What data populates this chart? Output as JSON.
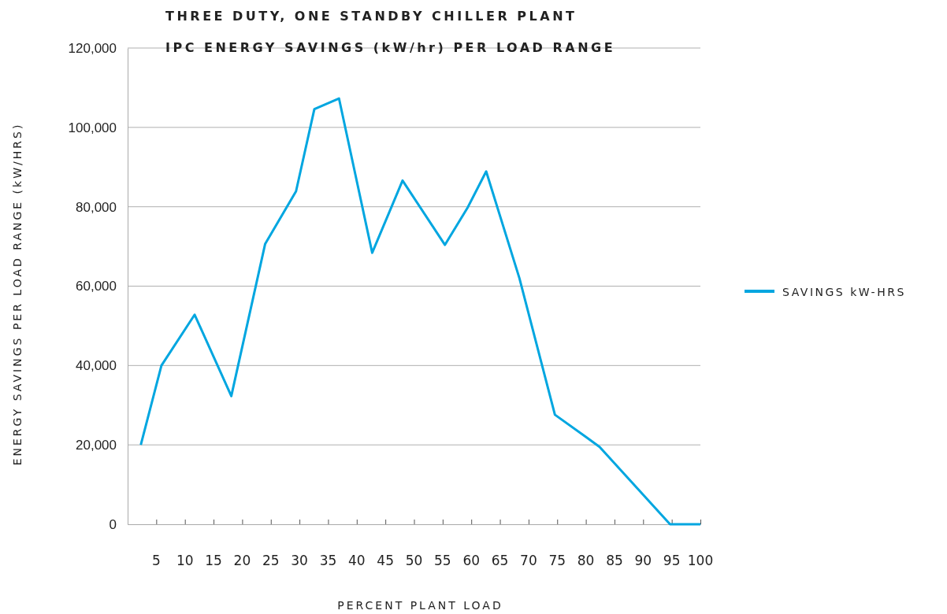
{
  "chart_data": {
    "type": "line",
    "title": "THREE DUTY, ONE STANDBY CHILLER PLANT",
    "subtitle": "IPC ENERGY SAVINGS (kW/hr) PER LOAD RANGE",
    "xlabel": "PERCENT PLANT LOAD",
    "ylabel": "ENERGY SAVINGS PER LOAD RANGE (kW/HRS)",
    "x": [
      2.3,
      5.9,
      11.7,
      18.1,
      24,
      29.4,
      32.6,
      36.9,
      42.7,
      48,
      55.4,
      59.4,
      62.6,
      68.4,
      74.6,
      80,
      82.4,
      94.7,
      100
    ],
    "series": [
      {
        "name": "SAVINGS kW-HRS",
        "color": "#00a6e0",
        "values": [
          20000,
          40000,
          52800,
          32300,
          70600,
          83900,
          104600,
          107300,
          68400,
          86600,
          70400,
          79900,
          88900,
          62000,
          27600,
          22000,
          19500,
          0,
          0
        ]
      }
    ],
    "xlim": [
      0,
      100
    ],
    "xticks": [
      5,
      10,
      15,
      20,
      25,
      30,
      35,
      40,
      45,
      50,
      55,
      60,
      65,
      70,
      75,
      80,
      85,
      90,
      95,
      100
    ],
    "ylim": [
      0,
      120000
    ],
    "yticks": [
      {
        "value": 0,
        "label": "0"
      },
      {
        "value": 20000,
        "label": "20,000"
      },
      {
        "value": 40000,
        "label": "40,000"
      },
      {
        "value": 60000,
        "label": "60,000"
      },
      {
        "value": 80000,
        "label": "80,000"
      },
      {
        "value": 100000,
        "label": "100,000"
      },
      {
        "value": 120000,
        "label": "120,000"
      }
    ],
    "grid": "y",
    "legend": "right",
    "marker": "none",
    "line_style": "solid"
  }
}
